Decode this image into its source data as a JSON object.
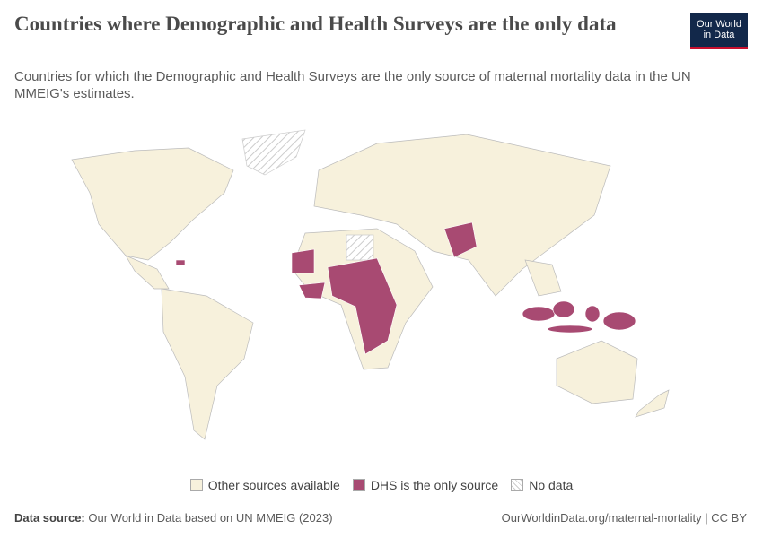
{
  "header": {
    "title": "Countries where Demographic and Health Surveys are the only data",
    "subtitle": "Countries for which the Demographic and Health Surveys are the only source of maternal mortality data in the UN MMEIG's estimates.",
    "logo": [
      "Our World",
      "in Data"
    ]
  },
  "legend": [
    "Other sources available",
    "DHS is the only source",
    "No data"
  ],
  "footer": {
    "source_label": "Data source:",
    "source": "Our World in Data based on UN MMEIG (2023)",
    "url": "OurWorldinData.org/maternal-mortality | CC BY"
  }
}
